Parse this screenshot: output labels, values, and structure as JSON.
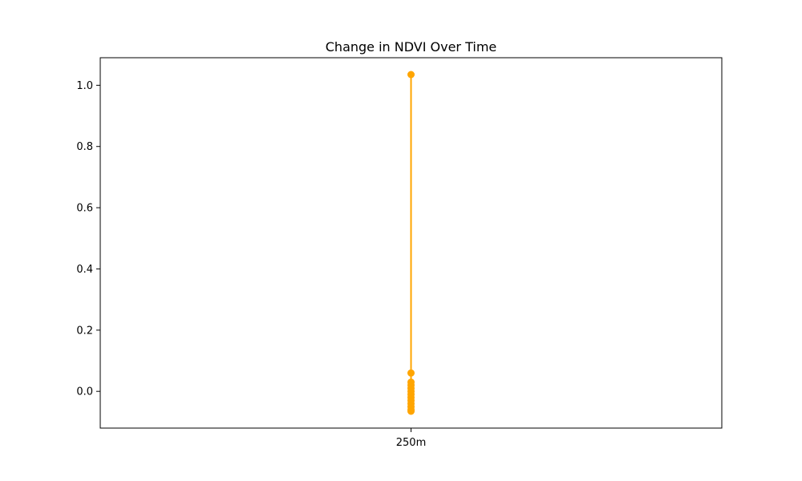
{
  "chart_data": {
    "type": "line",
    "title": "Change in NDVI Over Time",
    "xlabel": "",
    "ylabel": "",
    "categories": [
      "250m"
    ],
    "x_ticks": [
      "250m"
    ],
    "y_ticks": [
      "0.0",
      "0.2",
      "0.4",
      "0.6",
      "0.8",
      "1.0"
    ],
    "ylim": [
      -0.12,
      1.09
    ],
    "grid": false,
    "legend": "none",
    "series": [
      {
        "color": "#FFA500",
        "marker": "circle",
        "points": [
          {
            "x": "250m",
            "y": 1.035
          },
          {
            "x": "250m",
            "y": 0.06
          },
          {
            "x": "250m",
            "y": 0.03
          },
          {
            "x": "250m",
            "y": 0.02
          },
          {
            "x": "250m",
            "y": 0.01
          },
          {
            "x": "250m",
            "y": 0.0
          },
          {
            "x": "250m",
            "y": -0.01
          },
          {
            "x": "250m",
            "y": -0.02
          },
          {
            "x": "250m",
            "y": -0.03
          },
          {
            "x": "250m",
            "y": -0.04
          },
          {
            "x": "250m",
            "y": -0.05
          },
          {
            "x": "250m",
            "y": -0.06
          },
          {
            "x": "250m",
            "y": -0.065
          }
        ]
      }
    ]
  }
}
